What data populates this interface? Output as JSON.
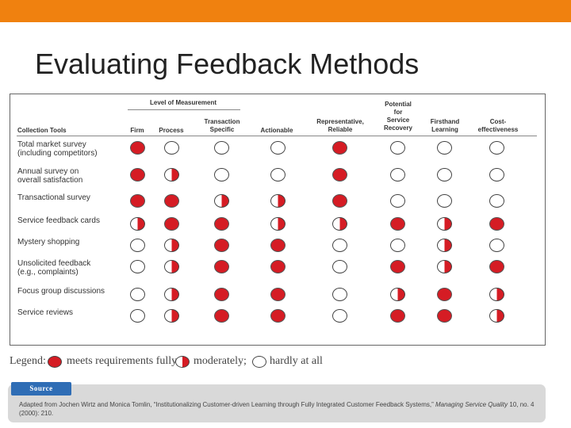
{
  "title": "Evaluating Feedback Methods",
  "colors": {
    "accent_bar": "#f0810f",
    "full_dot": "#d51c24",
    "source_tab": "#2f6db5"
  },
  "table": {
    "level_of_measurement": "Level of Measurement",
    "columns": {
      "tools": "Collection Tools",
      "firm": "Firm",
      "process": "Process",
      "transaction": [
        "Transaction",
        "Specific"
      ],
      "actionable": "Actionable",
      "representative": [
        "Representative,",
        "Reliable"
      ],
      "potential": [
        "Potential",
        "for",
        "Service",
        "Recovery"
      ],
      "firsthand": [
        "Firsthand",
        "Learning"
      ],
      "cost": [
        "Cost-",
        "effectiveness"
      ]
    },
    "rows": [
      {
        "label": [
          "Total market survey",
          "(including competitors)"
        ],
        "ratings": [
          "full",
          "none",
          "none",
          "none",
          "full",
          "none",
          "none",
          "none"
        ]
      },
      {
        "label": [
          "Annual survey on",
          "overall satisfaction"
        ],
        "ratings": [
          "full",
          "half",
          "none",
          "none",
          "full",
          "none",
          "none",
          "none"
        ]
      },
      {
        "label": [
          "Transactional survey"
        ],
        "ratings": [
          "full",
          "full",
          "half",
          "half",
          "full",
          "none",
          "none",
          "none"
        ]
      },
      {
        "label": [
          "Service feedback cards"
        ],
        "ratings": [
          "half",
          "full",
          "full",
          "half",
          "half",
          "full",
          "half",
          "full"
        ]
      },
      {
        "label": [
          "Mystery shopping"
        ],
        "ratings": [
          "none",
          "half",
          "full",
          "full",
          "none",
          "none",
          "half",
          "none"
        ]
      },
      {
        "label": [
          "Unsolicited feedback",
          "(e.g., complaints)"
        ],
        "ratings": [
          "none",
          "half",
          "full",
          "full",
          "none",
          "full",
          "half",
          "full"
        ]
      },
      {
        "label": [
          "Focus group discussions"
        ],
        "ratings": [
          "none",
          "half",
          "full",
          "full",
          "none",
          "half",
          "full",
          "half"
        ]
      },
      {
        "label": [
          "Service reviews"
        ],
        "ratings": [
          "none",
          "half",
          "full",
          "full",
          "none",
          "full",
          "full",
          "half"
        ]
      }
    ]
  },
  "legend": {
    "prefix": "Legend:",
    "full": "meets requirements fully;",
    "half": "moderately;",
    "none": "hardly at all"
  },
  "source": {
    "tab_label": "Source",
    "text_plain": "Adapted from Jochen Wirtz and Monica Tomlin, “Institutionalizing Customer-driven Learning through Fully Integrated Customer Feedback Systems,” ",
    "text_journal": "Managing Service Quality",
    "text_tail": " 10, no. 4 (2000): 210."
  }
}
